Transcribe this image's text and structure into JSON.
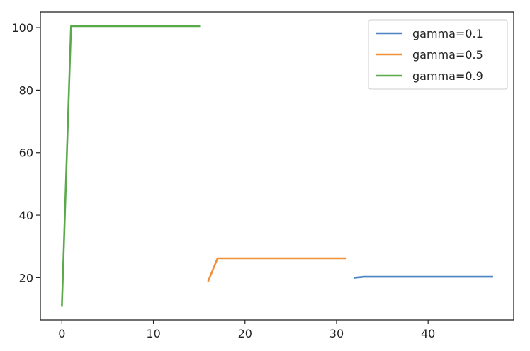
{
  "chart_data": {
    "type": "line",
    "title": "",
    "xlabel": "",
    "ylabel": "",
    "xlim": [
      -2.35,
      49.35
    ],
    "ylim": [
      6.5,
      105.0
    ],
    "xticks": [
      0,
      10,
      20,
      30,
      40
    ],
    "yticks": [
      20,
      40,
      60,
      80,
      100
    ],
    "grid": false,
    "legend_position": "top-right",
    "series": [
      {
        "name": "gamma=0.1",
        "color": "#4c84c4",
        "x": [
          32,
          33,
          47
        ],
        "y": [
          20.0,
          20.3,
          20.3
        ]
      },
      {
        "name": "gamma=0.5",
        "color": "#f0913a",
        "x": [
          16,
          17,
          31
        ],
        "y": [
          19.0,
          26.2,
          26.2
        ]
      },
      {
        "name": "gamma=0.9",
        "color": "#5aaa4c",
        "x": [
          0,
          1,
          15
        ],
        "y": [
          11.0,
          100.5,
          100.5
        ]
      }
    ]
  }
}
